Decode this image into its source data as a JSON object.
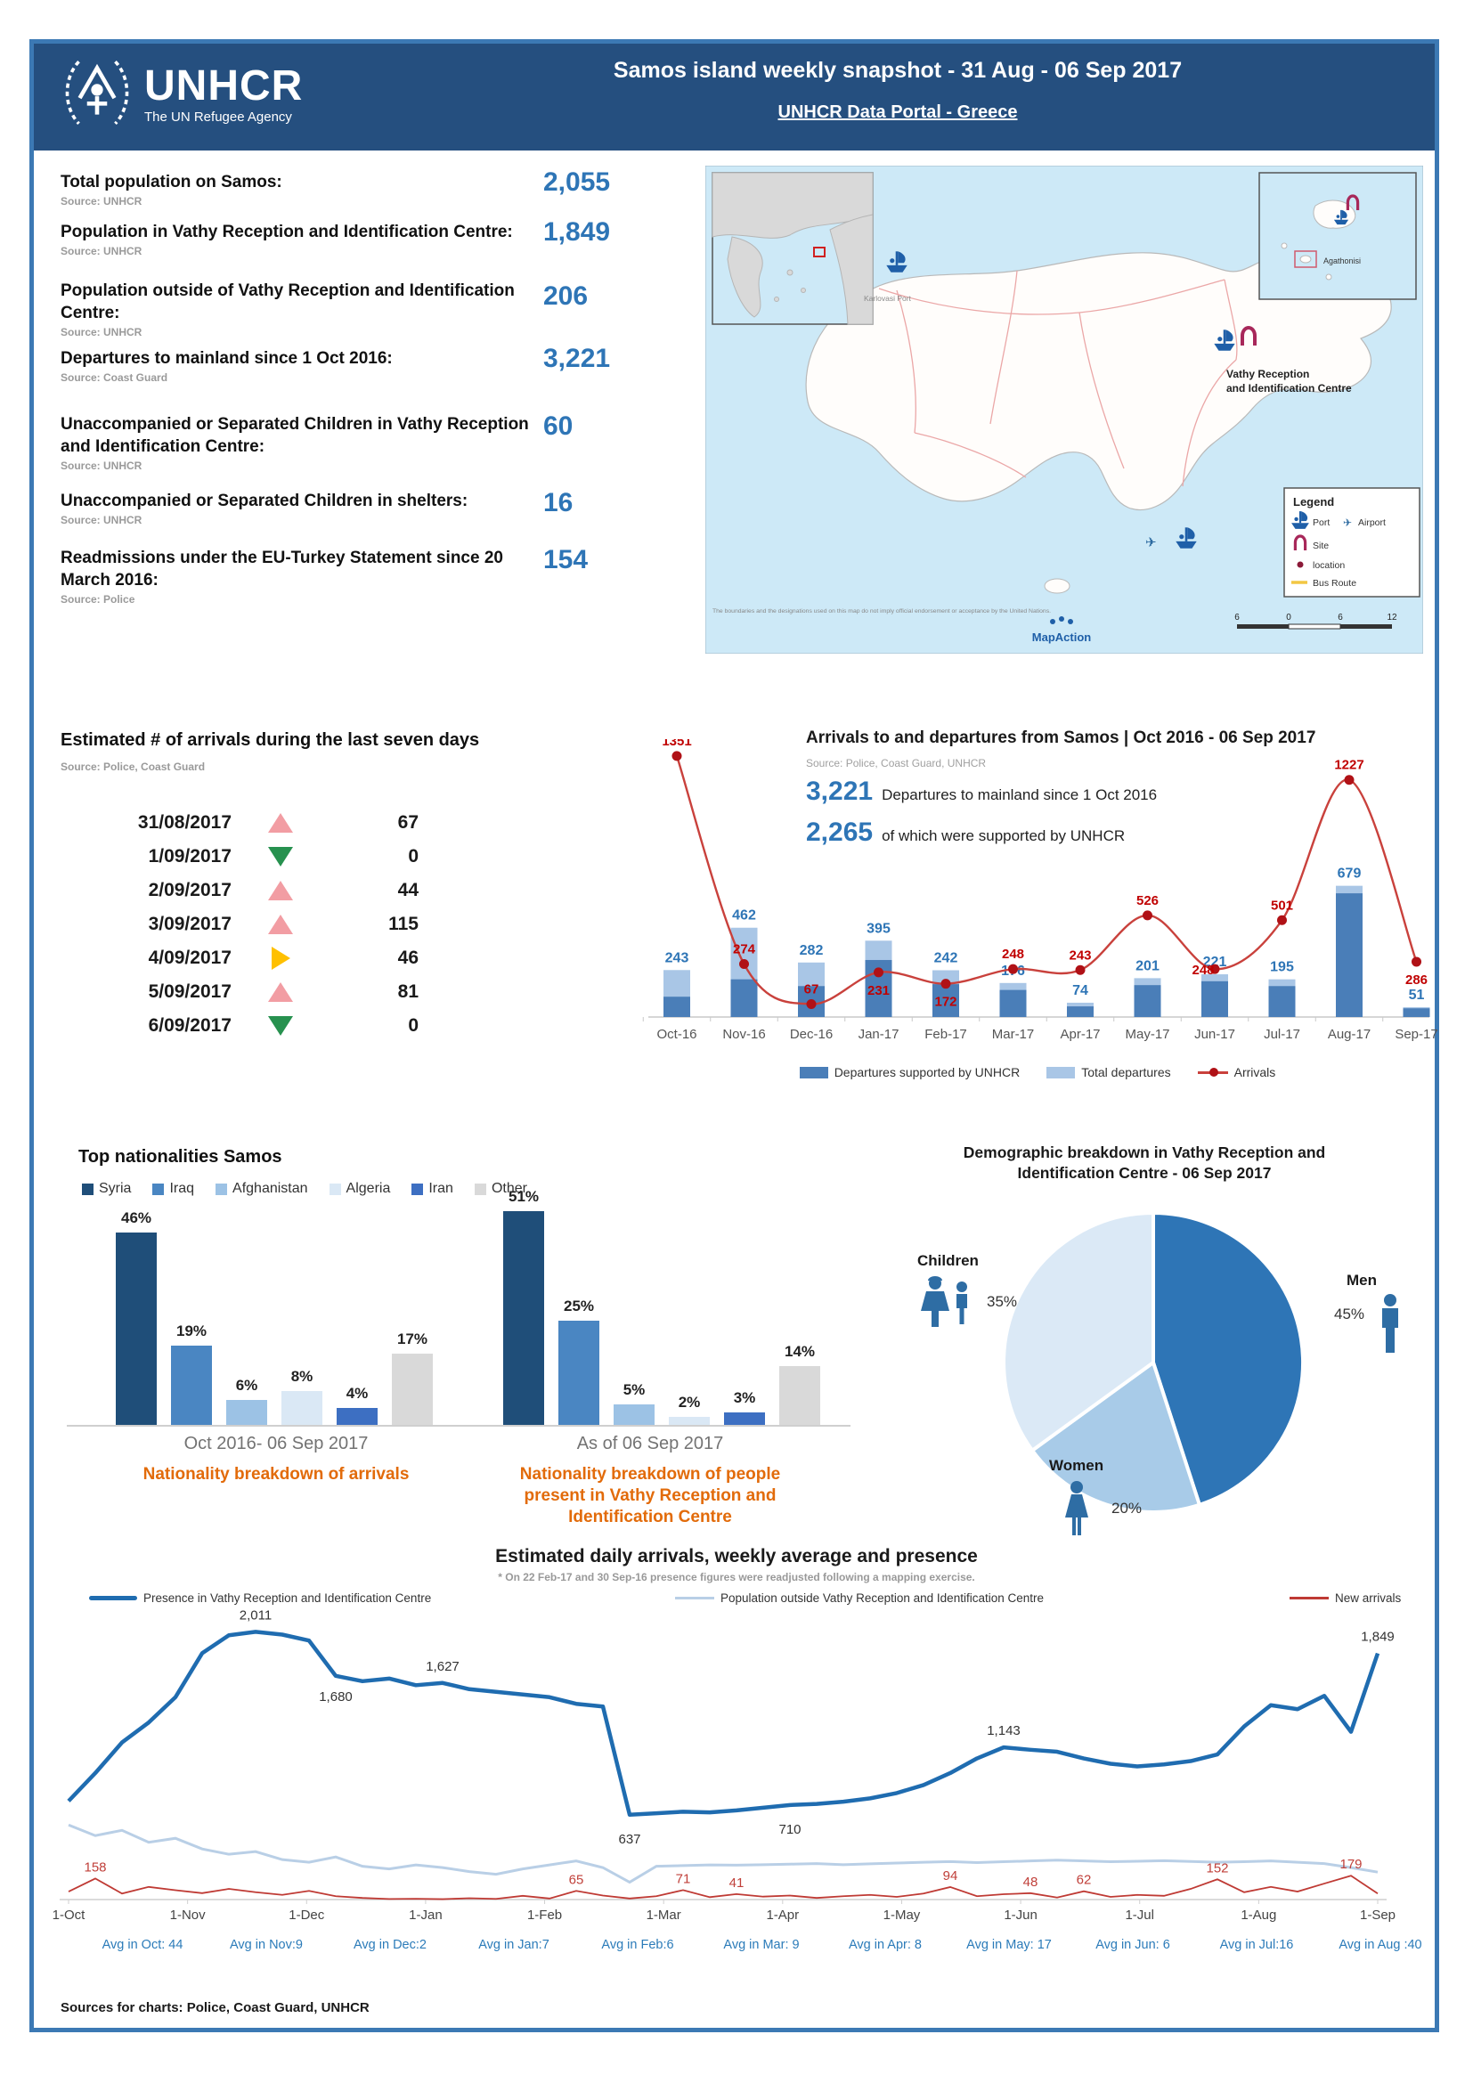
{
  "header": {
    "logo_text": "UNHCR",
    "logo_tagline": "The UN Refugee Agency",
    "title": "Samos island weekly snapshot - 31 Aug - 06 Sep 2017",
    "portal_link": "UNHCR Data Portal - Greece"
  },
  "stats": [
    {
      "label": "Total population on Samos:",
      "source": "Source: UNHCR",
      "value": "2,055"
    },
    {
      "label": "Population in Vathy Reception and Identification Centre:",
      "source": "Source: UNHCR",
      "value": "1,849"
    },
    {
      "label": "Population outside of Vathy Reception and Identification Centre:",
      "source": "Source: UNHCR",
      "value": "206"
    },
    {
      "label": "Departures to mainland since 1 Oct 2016:",
      "source": "Source: Coast Guard",
      "value": "3,221"
    },
    {
      "label": "Unaccompanied or Separated Children in Vathy Reception and Identification Centre:",
      "source": "Source: UNHCR",
      "value": "60"
    },
    {
      "label": "Unaccompanied or Separated Children in shelters:",
      "source": "Source: UNHCR",
      "value": "16"
    },
    {
      "label": "Readmissions under the EU-Turkey Statement since 20 March 2016:",
      "source": "Source: Police",
      "value": "154"
    }
  ],
  "arrivals_table": {
    "title": "Estimated # of arrivals during the last seven days",
    "source": "Source: Police, Coast Guard",
    "rows": [
      {
        "date": "31/08/2017",
        "trend": "up",
        "value": "67"
      },
      {
        "date": "1/09/2017",
        "trend": "down",
        "value": "0"
      },
      {
        "date": "2/09/2017",
        "trend": "up",
        "value": "44"
      },
      {
        "date": "3/09/2017",
        "trend": "up",
        "value": "115"
      },
      {
        "date": "4/09/2017",
        "trend": "flat",
        "value": "46"
      },
      {
        "date": "5/09/2017",
        "trend": "up",
        "value": "81"
      },
      {
        "date": "6/09/2017",
        "trend": "down",
        "value": "0"
      }
    ]
  },
  "chart_data": [
    {
      "type": "bar",
      "name": "arrivals_departures_monthly",
      "title": "Arrivals to and departures from Samos | Oct 2016 - 06 Sep 2017",
      "source": "Source: Police, Coast Guard, UNHCR",
      "highlight1": {
        "value": "3,221",
        "caption": "Departures to mainland since 1 Oct 2016"
      },
      "highlight2": {
        "value": "2,265",
        "caption": "of which were supported by UNHCR"
      },
      "categories": [
        "Oct-16",
        "Nov-16",
        "Dec-16",
        "Jan-17",
        "Feb-17",
        "Mar-17",
        "Apr-17",
        "May-17",
        "Jun-17",
        "Jul-17",
        "Aug-17",
        "Sep-17"
      ],
      "series": [
        {
          "name": "Total departures",
          "values": [
            243,
            462,
            282,
            395,
            242,
            176,
            74,
            201,
            221,
            195,
            679,
            51
          ]
        },
        {
          "name": "Departures supported by UNHCR (estimated, unlabeled)",
          "values": [
            105,
            195,
            160,
            295,
            170,
            140,
            55,
            165,
            185,
            160,
            640,
            45
          ]
        },
        {
          "name": "Arrivals",
          "values": [
            1351,
            274,
            67,
            231,
            172,
            248,
            243,
            526,
            248,
            501,
            1227,
            286
          ]
        }
      ],
      "arrival_label_pos": [
        "above",
        "above",
        "above",
        "below",
        "below",
        "above",
        "above",
        "above",
        "left",
        "above",
        "above",
        "below"
      ],
      "legend": [
        "Departures supported by UNHCR",
        "Total departures",
        "Arrivals"
      ],
      "ylim": [
        0,
        1400
      ],
      "colors": {
        "total": "#a9c6e6",
        "supported": "#4a7eb8",
        "line": "#c9413c",
        "dot": "#b01116"
      }
    },
    {
      "type": "bar",
      "name": "top_nationalities",
      "title": "Top nationalities Samos",
      "legend": [
        "Syria",
        "Iraq",
        "Afghanistan",
        "Algeria",
        "Iran",
        "Other"
      ],
      "colors": [
        "#1f4e79",
        "#4a86c2",
        "#9cc2e5",
        "#dae8f5",
        "#3d6fc2",
        "#d9d9d9"
      ],
      "groups": [
        {
          "label": "Oct 2016- 06 Sep 2017",
          "caption": "Nationality breakdown of arrivals",
          "values": [
            46,
            19,
            6,
            8,
            4,
            17
          ]
        },
        {
          "label": "As of 06 Sep 2017",
          "caption": "Nationality breakdown of people present in Vathy Reception and Identification Centre",
          "values": [
            51,
            25,
            5,
            2,
            3,
            14
          ]
        }
      ],
      "unit": "%"
    },
    {
      "type": "pie",
      "name": "demographic_breakdown",
      "title": "Demographic breakdown in Vathy Reception and Identification Centre - 06 Sep 2017",
      "title_line1": "Demographic breakdown in Vathy Reception and",
      "title_line2": "Identification Centre - 06 Sep 2017",
      "slices": [
        {
          "label": "Men",
          "value": 45,
          "pct": "45%",
          "color": "#2e75b6"
        },
        {
          "label": "Women",
          "value": 20,
          "pct": "20%",
          "color": "#a8cbe8"
        },
        {
          "label": "Children",
          "value": 35,
          "pct": "35%",
          "color": "#dbe9f6"
        }
      ]
    },
    {
      "type": "line",
      "name": "daily_arrivals_presence",
      "title": "Estimated daily arrivals, weekly average and presence",
      "note": "* On 22 Feb-17 and 30 Sep-16 presence figures were readjusted following a mapping exercise.",
      "legend": [
        "Presence in Vathy Reception and Identification Centre",
        "Population outside Vathy Reception and Identification Centre",
        "New arrivals"
      ],
      "x_ticks": [
        "1-Oct",
        "1-Nov",
        "1-Dec",
        "1-Jan",
        "1-Feb",
        "1-Mar",
        "1-Apr",
        "1-May",
        "1-Jun",
        "1-Jul",
        "1-Aug",
        "1-Sep"
      ],
      "series": [
        {
          "name": "presence",
          "color": "#1f6cb0",
          "values": [
            740,
            950,
            1180,
            1330,
            1520,
            1850,
            1985,
            2011,
            1990,
            1945,
            1680,
            1640,
            1660,
            1610,
            1627,
            1580,
            1560,
            1540,
            1520,
            1470,
            1450,
            637,
            648,
            660,
            655,
            670,
            690,
            710,
            718,
            735,
            760,
            800,
            860,
            950,
            1060,
            1143,
            1125,
            1110,
            1060,
            1020,
            1000,
            1015,
            1040,
            1090,
            1300,
            1460,
            1430,
            1530,
            1260,
            1849
          ]
        },
        {
          "name": "outside",
          "color": "#b9cfe6",
          "values": [
            560,
            480,
            520,
            430,
            460,
            380,
            340,
            360,
            300,
            280,
            320,
            250,
            230,
            260,
            240,
            210,
            190,
            230,
            260,
            290,
            240,
            130,
            250,
            255,
            260,
            258,
            262,
            266,
            270,
            262,
            268,
            274,
            280,
            285,
            278,
            284,
            290,
            296,
            290,
            284,
            288,
            292,
            286,
            280,
            284,
            290,
            280,
            270,
            240,
            206
          ]
        },
        {
          "name": "new_arrivals",
          "color": "#bf3a34",
          "values": [
            60,
            158,
            45,
            95,
            70,
            48,
            80,
            55,
            35,
            65,
            25,
            12,
            4,
            6,
            3,
            10,
            5,
            28,
            8,
            65,
            30,
            8,
            25,
            71,
            18,
            41,
            22,
            30,
            12,
            25,
            35,
            20,
            45,
            94,
            25,
            40,
            48,
            15,
            62,
            20,
            35,
            28,
            80,
            152,
            55,
            95,
            60,
            120,
            179,
            45
          ]
        }
      ],
      "annotations_presence": [
        {
          "i": 7,
          "label": "2,011",
          "dy": -14
        },
        {
          "i": 10,
          "label": "1,680",
          "dy": 28
        },
        {
          "i": 14,
          "label": "1,627",
          "dy": -14
        },
        {
          "i": 21,
          "label": "637",
          "dy": 32
        },
        {
          "i": 27,
          "label": "710",
          "dy": 32
        },
        {
          "i": 35,
          "label": "1,143",
          "dy": -14
        },
        {
          "i": 49,
          "label": "1,849",
          "dy": -14
        }
      ],
      "annotations_arrivals": [
        {
          "i": 1,
          "label": "158"
        },
        {
          "i": 19,
          "label": "65"
        },
        {
          "i": 23,
          "label": "71"
        },
        {
          "i": 25,
          "label": "41"
        },
        {
          "i": 33,
          "label": "94"
        },
        {
          "i": 36,
          "label": "48"
        },
        {
          "i": 38,
          "label": "62"
        },
        {
          "i": 43,
          "label": "152"
        },
        {
          "i": 48,
          "label": "179"
        }
      ],
      "avg_labels": [
        "Avg in Oct: 44",
        "Avg in Nov:9",
        "Avg in Dec:2",
        "Avg in Jan:7",
        "Avg in Feb:6",
        "Avg in Mar: 9",
        "Avg in Apr: 8",
        "Avg in May: 17",
        "Avg in Jun: 6",
        "Avg in Jul:16",
        "Avg in Aug :40"
      ]
    }
  ],
  "map": {
    "karlovasi_label": "Karlovasi Port",
    "vathy_line1": "Vathy Reception",
    "vathy_line2": "and Identification Centre",
    "agathonisi_label": "Agathonisi",
    "legend": {
      "title": "Legend",
      "port": "Port",
      "airport": "Airport",
      "site": "Site",
      "location": "location",
      "bus": "Bus Route"
    },
    "scale_labels": [
      "6",
      "0",
      "6",
      "12"
    ],
    "disclaimer": "The boundaries and the designations used on this map do not imply official endorsement or acceptance by the United Nations.",
    "credit": "MapAction"
  },
  "footer": "Sources for charts: Police, Coast Guard, UNHCR",
  "colors": {
    "frame": "#3c79b4",
    "header_bg": "#254f7f",
    "value_blue": "#2e75b6",
    "orange": "#e26b0a",
    "red_label": "#c00000",
    "trend_up": "#f29da3",
    "trend_down": "#27914f",
    "trend_flat": "#ffc000"
  }
}
